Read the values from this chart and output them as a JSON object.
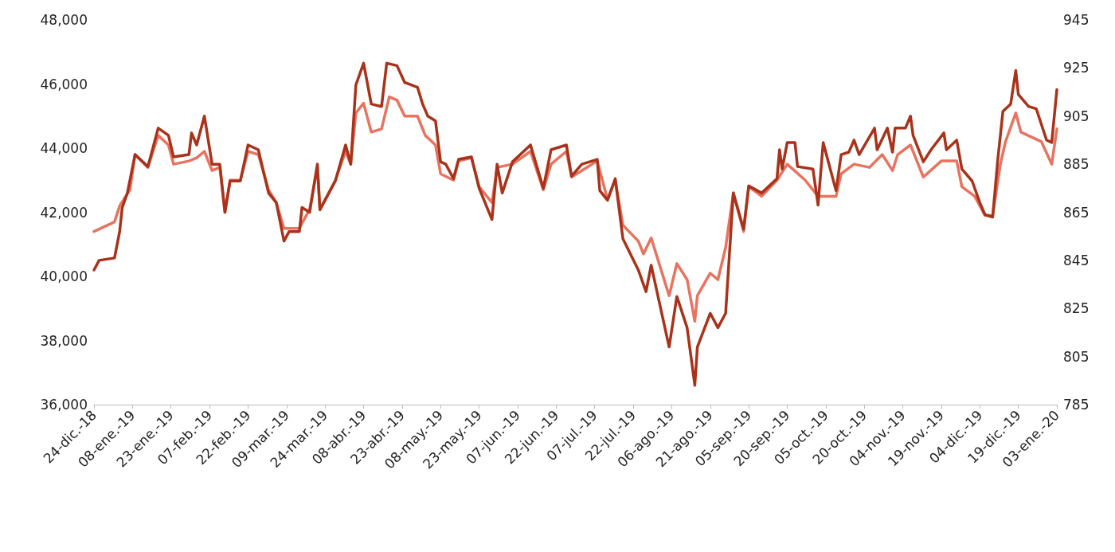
{
  "chart_data": {
    "type": "line",
    "xlim": [
      "2018-12-24",
      "2020-01-03"
    ],
    "xticks": [
      {
        "value": "2018-12-24",
        "label": "24-dic.-18"
      },
      {
        "value": "2019-01-08",
        "label": "08-ene.-19"
      },
      {
        "value": "2019-01-23",
        "label": "23-ene.-19"
      },
      {
        "value": "2019-02-07",
        "label": "07-feb.-19"
      },
      {
        "value": "2019-02-22",
        "label": "22-feb.-19"
      },
      {
        "value": "2019-03-09",
        "label": "09-mar.-19"
      },
      {
        "value": "2019-03-24",
        "label": "24-mar.-19"
      },
      {
        "value": "2019-04-08",
        "label": "08-abr.-19"
      },
      {
        "value": "2019-04-23",
        "label": "23-abr.-19"
      },
      {
        "value": "2019-05-08",
        "label": "08-may.-19"
      },
      {
        "value": "2019-05-23",
        "label": "23-may.-19"
      },
      {
        "value": "2019-06-07",
        "label": "07-jun.-19"
      },
      {
        "value": "2019-06-22",
        "label": "22-jun.-19"
      },
      {
        "value": "2019-07-07",
        "label": "07-jul.-19"
      },
      {
        "value": "2019-07-22",
        "label": "22-jul.-19"
      },
      {
        "value": "2019-08-06",
        "label": "06-ago.-19"
      },
      {
        "value": "2019-08-21",
        "label": "21-ago.-19"
      },
      {
        "value": "2019-09-05",
        "label": "05-sep.-19"
      },
      {
        "value": "2019-09-20",
        "label": "20-sep.-19"
      },
      {
        "value": "2019-10-05",
        "label": "05-oct.-19"
      },
      {
        "value": "2019-10-20",
        "label": "20-oct.-19"
      },
      {
        "value": "2019-11-04",
        "label": "04-nov.-19"
      },
      {
        "value": "2019-11-19",
        "label": "19-nov.-19"
      },
      {
        "value": "2019-12-04",
        "label": "04-dic.-19"
      },
      {
        "value": "2019-12-19",
        "label": "19-dic.-19"
      },
      {
        "value": "2020-01-03",
        "label": "03-ene.-20"
      }
    ],
    "ylim": [
      36000,
      48000
    ],
    "yticks": [
      {
        "value": 36000,
        "label": "36,000"
      },
      {
        "value": 38000,
        "label": "38,000"
      },
      {
        "value": 40000,
        "label": "40,000"
      },
      {
        "value": 42000,
        "label": "42,000"
      },
      {
        "value": 44000,
        "label": "44,000"
      },
      {
        "value": 46000,
        "label": "46,000"
      },
      {
        "value": 48000,
        "label": "48,000"
      }
    ],
    "y2lim": [
      785,
      945
    ],
    "y2ticks": [
      785,
      805,
      825,
      845,
      865,
      885,
      905,
      925,
      945
    ],
    "grid": false,
    "marker": "none",
    "line_style": "solid",
    "series": [
      {
        "color": "#e8735f",
        "x": [
          "2018-12-24",
          "2019-01-01",
          "2019-01-03",
          "2019-01-07",
          "2019-01-09",
          "2019-01-14",
          "2019-01-18",
          "2019-01-22",
          "2019-01-24",
          "2019-01-30",
          "2019-02-02",
          "2019-02-05",
          "2019-02-08",
          "2019-02-11",
          "2019-02-13",
          "2019-02-15",
          "2019-02-19",
          "2019-02-22",
          "2019-02-26",
          "2019-03-02",
          "2019-03-05",
          "2019-03-08",
          "2019-03-14",
          "2019-03-18",
          "2019-03-21",
          "2019-03-22",
          "2019-03-28",
          "2019-04-01",
          "2019-04-03",
          "2019-04-05",
          "2019-04-08",
          "2019-04-11",
          "2019-04-15",
          "2019-04-18",
          "2019-04-21",
          "2019-04-24",
          "2019-04-29",
          "2019-05-02",
          "2019-05-06",
          "2019-05-08",
          "2019-05-13",
          "2019-05-15",
          "2019-05-20",
          "2019-05-23",
          "2019-05-28",
          "2019-05-30",
          "2019-06-05",
          "2019-06-12",
          "2019-06-17",
          "2019-06-20",
          "2019-06-26",
          "2019-06-28",
          "2019-07-08",
          "2019-07-12",
          "2019-07-15",
          "2019-07-18",
          "2019-07-24",
          "2019-07-26",
          "2019-07-29",
          "2019-08-05",
          "2019-08-08",
          "2019-08-12",
          "2019-08-15",
          "2019-08-16",
          "2019-08-21",
          "2019-08-24",
          "2019-08-27",
          "2019-08-30",
          "2019-09-03",
          "2019-09-05",
          "2019-09-10",
          "2019-09-16",
          "2019-09-20",
          "2019-09-27",
          "2019-10-02",
          "2019-10-09",
          "2019-10-11",
          "2019-10-16",
          "2019-10-22",
          "2019-10-27",
          "2019-10-31",
          "2019-11-02",
          "2019-11-07",
          "2019-11-12",
          "2019-11-19",
          "2019-11-25",
          "2019-11-27",
          "2019-12-02",
          "2019-12-06",
          "2019-12-09",
          "2019-12-12",
          "2019-12-14",
          "2019-12-18",
          "2019-12-20",
          "2019-12-28",
          "2020-01-01",
          "2020-01-03"
        ],
        "values": [
          41400,
          41700,
          42200,
          42700,
          43800,
          43400,
          44400,
          44100,
          43500,
          43600,
          43700,
          43900,
          43300,
          43400,
          42000,
          43000,
          43000,
          43900,
          43800,
          42700,
          42300,
          41500,
          41500,
          42100,
          43400,
          42100,
          43000,
          43900,
          43500,
          45100,
          45400,
          44500,
          44600,
          45600,
          45500,
          45000,
          45000,
          44400,
          44100,
          43200,
          43000,
          43600,
          43700,
          42800,
          42300,
          43400,
          43500,
          43900,
          42700,
          43500,
          43900,
          43100,
          43600,
          42400,
          43000,
          41600,
          41100,
          40700,
          41200,
          39400,
          40400,
          39900,
          38600,
          39400,
          40100,
          39900,
          40900,
          42600,
          41400,
          42800,
          42500,
          43000,
          43500,
          43000,
          42500,
          42500,
          43200,
          43500,
          43400,
          43800,
          43300,
          43800,
          44100,
          43100,
          43600,
          43600,
          42800,
          42500,
          41900,
          41900,
          43500,
          44200,
          45100,
          44500,
          44200,
          43500,
          44600
        ]
      },
      {
        "color": "#a8331a",
        "axis": "y2",
        "x": [
          "2018-12-24",
          "2018-12-26",
          "2019-01-01",
          "2019-01-03",
          "2019-01-04",
          "2019-01-06",
          "2019-01-09",
          "2019-01-14",
          "2019-01-18",
          "2019-01-22",
          "2019-01-24",
          "2019-01-30",
          "2019-01-31",
          "2019-02-02",
          "2019-02-05",
          "2019-02-08",
          "2019-02-11",
          "2019-02-13",
          "2019-02-15",
          "2019-02-19",
          "2019-02-22",
          "2019-02-26",
          "2019-03-02",
          "2019-03-05",
          "2019-03-08",
          "2019-03-10",
          "2019-03-14",
          "2019-03-15",
          "2019-03-18",
          "2019-03-21",
          "2019-03-22",
          "2019-03-28",
          "2019-04-01",
          "2019-04-03",
          "2019-04-05",
          "2019-04-08",
          "2019-04-11",
          "2019-04-15",
          "2019-04-17",
          "2019-04-21",
          "2019-04-24",
          "2019-04-29",
          "2019-05-01",
          "2019-05-03",
          "2019-05-06",
          "2019-05-08",
          "2019-05-10",
          "2019-05-13",
          "2019-05-15",
          "2019-05-20",
          "2019-05-23",
          "2019-05-28",
          "2019-05-30",
          "2019-06-01",
          "2019-06-05",
          "2019-06-12",
          "2019-06-17",
          "2019-06-20",
          "2019-06-26",
          "2019-06-28",
          "2019-07-02",
          "2019-07-08",
          "2019-07-09",
          "2019-07-12",
          "2019-07-15",
          "2019-07-18",
          "2019-07-24",
          "2019-07-27",
          "2019-07-29",
          "2019-08-05",
          "2019-08-08",
          "2019-08-12",
          "2019-08-15",
          "2019-08-16",
          "2019-08-21",
          "2019-08-24",
          "2019-08-27",
          "2019-08-30",
          "2019-09-03",
          "2019-09-05",
          "2019-09-10",
          "2019-09-16",
          "2019-09-17",
          "2019-09-18",
          "2019-09-20",
          "2019-09-23",
          "2019-09-24",
          "2019-09-30",
          "2019-10-02",
          "2019-10-04",
          "2019-10-09",
          "2019-10-11",
          "2019-10-14",
          "2019-10-16",
          "2019-10-18",
          "2019-10-24",
          "2019-10-25",
          "2019-10-29",
          "2019-10-31",
          "2019-11-01",
          "2019-11-05",
          "2019-11-07",
          "2019-11-08",
          "2019-11-12",
          "2019-11-15",
          "2019-11-20",
          "2019-11-21",
          "2019-11-25",
          "2019-11-27",
          "2019-12-01",
          "2019-12-04",
          "2019-12-06",
          "2019-12-09",
          "2019-12-11",
          "2019-12-13",
          "2019-12-16",
          "2019-12-18",
          "2019-12-19",
          "2019-12-23",
          "2019-12-26",
          "2019-12-30",
          "2020-01-01",
          "2020-01-03"
        ],
        "values": [
          841,
          845,
          846,
          857,
          867,
          873,
          889,
          884,
          900,
          897,
          888,
          889,
          898,
          893,
          905,
          885,
          885,
          865,
          878,
          878,
          893,
          891,
          873,
          869,
          853,
          857,
          857,
          867,
          865,
          885,
          866,
          878,
          893,
          885,
          918,
          927,
          910,
          909,
          927,
          926,
          919,
          917,
          910,
          905,
          903,
          886,
          885,
          879,
          887,
          888,
          875,
          862,
          885,
          873,
          886,
          893,
          875,
          891,
          893,
          880,
          885,
          887,
          874,
          870,
          879,
          854,
          841,
          832,
          843,
          809,
          830,
          817,
          793,
          809,
          823,
          817,
          823,
          873,
          858,
          876,
          873,
          879,
          891,
          883,
          894,
          894,
          884,
          883,
          868,
          894,
          874,
          889,
          890,
          895,
          889,
          900,
          891,
          900,
          890,
          900,
          900,
          905,
          897,
          886,
          891,
          898,
          891,
          895,
          883,
          878,
          869,
          864,
          863,
          887,
          907,
          910,
          924,
          914,
          909,
          908,
          895,
          894,
          916
        ]
      }
    ]
  }
}
